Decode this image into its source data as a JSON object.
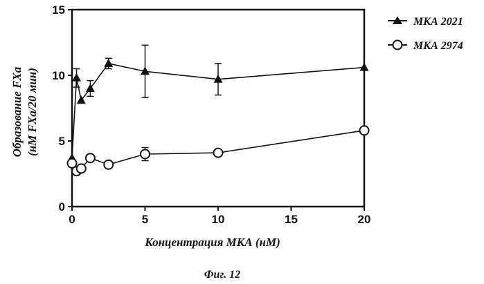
{
  "chart_data": {
    "type": "line",
    "xlabel": "Концентрация МКА (нМ)",
    "ylabel_line1": "Образование FXa",
    "ylabel_line2": "(нМ FXa/20 мин)",
    "caption": "Фиг. 12",
    "xlim": [
      0,
      20
    ],
    "ylim": [
      0,
      15
    ],
    "x_ticks": [
      0,
      5,
      10,
      15,
      20
    ],
    "y_ticks": [
      0,
      5,
      10,
      15
    ],
    "grid": false,
    "legend_position": "top-right",
    "series": [
      {
        "name": "МКА 2021",
        "marker": "filled-triangle",
        "color": "#111111",
        "points": [
          {
            "x": 0,
            "y": 3.7
          },
          {
            "x": 0.31,
            "y": 9.8,
            "err": 0.7
          },
          {
            "x": 0.63,
            "y": 8.1
          },
          {
            "x": 1.25,
            "y": 9.0,
            "err": 0.6
          },
          {
            "x": 2.5,
            "y": 10.9,
            "err": 0.4
          },
          {
            "x": 5,
            "y": 10.3,
            "err": 2.0
          },
          {
            "x": 10,
            "y": 9.7,
            "err": 1.2
          },
          {
            "x": 20,
            "y": 10.6
          }
        ]
      },
      {
        "name": "МКА 2974",
        "marker": "open-circle",
        "color": "#111111",
        "points": [
          {
            "x": 0,
            "y": 3.3
          },
          {
            "x": 0.31,
            "y": 2.7
          },
          {
            "x": 0.63,
            "y": 2.9
          },
          {
            "x": 1.25,
            "y": 3.7
          },
          {
            "x": 2.5,
            "y": 3.2
          },
          {
            "x": 5,
            "y": 4.0,
            "err": 0.5
          },
          {
            "x": 10,
            "y": 4.1
          },
          {
            "x": 20,
            "y": 5.8
          }
        ]
      }
    ]
  }
}
